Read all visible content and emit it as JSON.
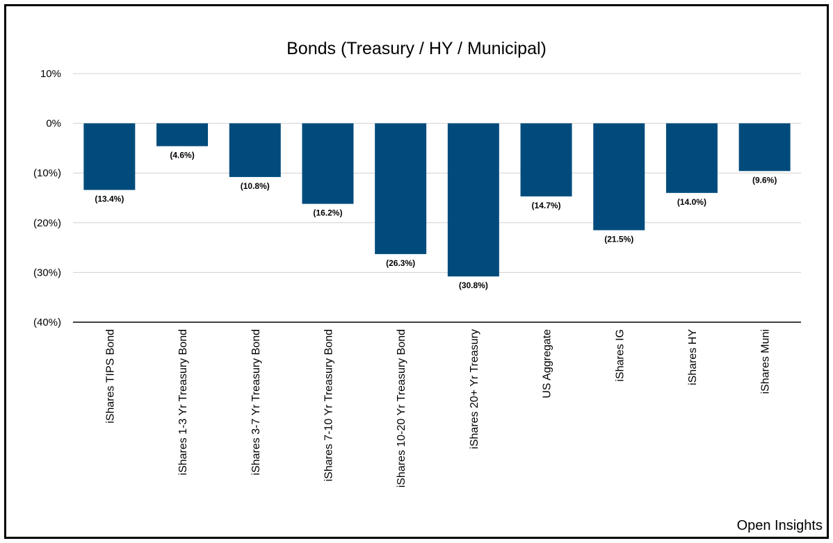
{
  "chart_data": {
    "type": "bar",
    "title": "Bonds (Treasury / HY / Municipal)",
    "categories": [
      "iShares TIPS Bond",
      "iShares 1-3 Yr Treasury Bond",
      "iShares 3-7 Yr Treasury Bond",
      "iShares 7-10 Yr Treasury Bond",
      "iShares 10-20 Yr Treasury Bond",
      "iShares 20+ Yr Treasury",
      "US Aggregate",
      "iShares IG",
      "iShares HY",
      "iShares Muni"
    ],
    "values": [
      -13.4,
      -4.6,
      -10.8,
      -16.2,
      -26.3,
      -30.8,
      -14.7,
      -21.5,
      -14.0,
      -9.6
    ],
    "data_labels": [
      "(13.4%)",
      "(4.6%)",
      "(10.8%)",
      "(16.2%)",
      "(26.3%)",
      "(30.8%)",
      "(14.7%)",
      "(21.5%)",
      "(14.0%)",
      "(9.6%)"
    ],
    "yticks": [
      10,
      0,
      -10,
      -20,
      -30,
      -40
    ],
    "ytick_labels": [
      "10%",
      "0%",
      "(10%)",
      "(20%)",
      "(30%)",
      "(40%)"
    ],
    "ylim": [
      -40,
      10
    ],
    "xlabel": "",
    "ylabel": "",
    "grid": true,
    "legend": "none",
    "bar_color": "#004b7c"
  },
  "watermark": "Open Insights"
}
